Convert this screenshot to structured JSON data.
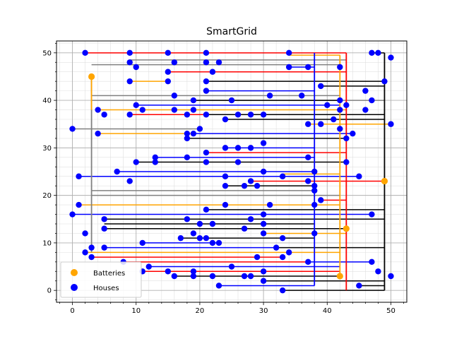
{
  "chart_data": {
    "type": "scatter",
    "title": "SmartGrid",
    "xlabel": "",
    "ylabel": "",
    "xlim": [
      -2.5,
      52.5
    ],
    "ylim": [
      -2.5,
      52.5
    ],
    "xticks": [
      0,
      10,
      20,
      30,
      40,
      50
    ],
    "yticks": [
      0,
      10,
      20,
      30,
      40,
      50
    ],
    "grid": "major and minor",
    "legend": {
      "position": "lower-left",
      "entries": [
        {
          "label": "Batteries",
          "color": "#ffa500"
        },
        {
          "label": "Houses",
          "color": "#0000ff"
        }
      ]
    },
    "colors": {
      "battery": "#ffa500",
      "house": "#0000ff",
      "cable_black": "#000000",
      "cable_blue": "#0000ff",
      "cable_red": "#ff0000",
      "cable_orange": "#ffa500",
      "cable_gray": "#808080"
    },
    "batteries": [
      [
        3,
        45
      ],
      [
        42,
        3
      ],
      [
        43,
        13
      ],
      [
        49,
        23
      ]
    ],
    "houses": [
      [
        2,
        50
      ],
      [
        9,
        50
      ],
      [
        15,
        50
      ],
      [
        21,
        50
      ],
      [
        34,
        50
      ],
      [
        47,
        50
      ],
      [
        48,
        50
      ],
      [
        50,
        49
      ],
      [
        9,
        48
      ],
      [
        21,
        48
      ],
      [
        23,
        48
      ],
      [
        10,
        47
      ],
      [
        16,
        48
      ],
      [
        15,
        46
      ],
      [
        22,
        46
      ],
      [
        34,
        47
      ],
      [
        37,
        47
      ],
      [
        42,
        47
      ],
      [
        9,
        44
      ],
      [
        15,
        44
      ],
      [
        21,
        44
      ],
      [
        39,
        43
      ],
      [
        49,
        44
      ],
      [
        21,
        42
      ],
      [
        46,
        42
      ],
      [
        16,
        41
      ],
      [
        31,
        41
      ],
      [
        36,
        41
      ],
      [
        19,
        40
      ],
      [
        25,
        40
      ],
      [
        42,
        40
      ],
      [
        47,
        40
      ],
      [
        10,
        39
      ],
      [
        40,
        39
      ],
      [
        43,
        39
      ],
      [
        4,
        38
      ],
      [
        11,
        38
      ],
      [
        16,
        38
      ],
      [
        19,
        38
      ],
      [
        42,
        38
      ],
      [
        46,
        38
      ],
      [
        5,
        37
      ],
      [
        9,
        37
      ],
      [
        18,
        37
      ],
      [
        21,
        37
      ],
      [
        26,
        37
      ],
      [
        28,
        37
      ],
      [
        30,
        37
      ],
      [
        24,
        36
      ],
      [
        41,
        36
      ],
      [
        37,
        35
      ],
      [
        39,
        35
      ],
      [
        50,
        35
      ],
      [
        0,
        34
      ],
      [
        20,
        34
      ],
      [
        42,
        34
      ],
      [
        4,
        33
      ],
      [
        18,
        33
      ],
      [
        19,
        33
      ],
      [
        44,
        33
      ],
      [
        18,
        32
      ],
      [
        43,
        32
      ],
      [
        30,
        31
      ],
      [
        24,
        30
      ],
      [
        26,
        30
      ],
      [
        28,
        30
      ],
      [
        21,
        29
      ],
      [
        13,
        28
      ],
      [
        18,
        28
      ],
      [
        37,
        28
      ],
      [
        13,
        27
      ],
      [
        21,
        27
      ],
      [
        26,
        27
      ],
      [
        10,
        27
      ],
      [
        43,
        27
      ],
      [
        7,
        25
      ],
      [
        30,
        25
      ],
      [
        38,
        25
      ],
      [
        1,
        24
      ],
      [
        24,
        24
      ],
      [
        33,
        24
      ],
      [
        45,
        24
      ],
      [
        9,
        23
      ],
      [
        28,
        23
      ],
      [
        37,
        23
      ],
      [
        24,
        22
      ],
      [
        27,
        22
      ],
      [
        29,
        22
      ],
      [
        38,
        22
      ],
      [
        38,
        21
      ],
      [
        39,
        19
      ],
      [
        1,
        18
      ],
      [
        24,
        18
      ],
      [
        31,
        18
      ],
      [
        38,
        18
      ],
      [
        21,
        17
      ],
      [
        0,
        16
      ],
      [
        30,
        16
      ],
      [
        47,
        16
      ],
      [
        5,
        15
      ],
      [
        18,
        15
      ],
      [
        22,
        14
      ],
      [
        20,
        14
      ],
      [
        28,
        15
      ],
      [
        30,
        14
      ],
      [
        5,
        13
      ],
      [
        27,
        13
      ],
      [
        2,
        12
      ],
      [
        19,
        12
      ],
      [
        30,
        12
      ],
      [
        38,
        12
      ],
      [
        17,
        11
      ],
      [
        20,
        11
      ],
      [
        21,
        11
      ],
      [
        33,
        11
      ],
      [
        11,
        10
      ],
      [
        22,
        10
      ],
      [
        23,
        10
      ],
      [
        3,
        9
      ],
      [
        5,
        9
      ],
      [
        32,
        9
      ],
      [
        2,
        8
      ],
      [
        34,
        8
      ],
      [
        3,
        7
      ],
      [
        29,
        7
      ],
      [
        33,
        7
      ],
      [
        8,
        6
      ],
      [
        37,
        6
      ],
      [
        47,
        6
      ],
      [
        12,
        5
      ],
      [
        25,
        5
      ],
      [
        11,
        4
      ],
      [
        15,
        4
      ],
      [
        19,
        4
      ],
      [
        30,
        4
      ],
      [
        48,
        4
      ],
      [
        16,
        3
      ],
      [
        19,
        3
      ],
      [
        22,
        3
      ],
      [
        27,
        3
      ],
      [
        28,
        3
      ],
      [
        50,
        3
      ],
      [
        30,
        2
      ],
      [
        23,
        1
      ],
      [
        45,
        1
      ],
      [
        33,
        0
      ]
    ],
    "cables": [
      {
        "c": "red",
        "h": [
          [
            2,
            50
          ],
          [
            22,
            50
          ]
        ]
      },
      {
        "c": "red",
        "h": [
          [
            22,
            50
          ],
          [
            43,
            50
          ]
        ]
      },
      {
        "c": "orange",
        "h": [
          [
            34,
            49.5
          ],
          [
            42,
            49.5
          ]
        ]
      },
      {
        "c": "black",
        "h": [
          [
            47,
            50
          ],
          [
            49,
            50
          ]
        ]
      },
      {
        "c": "gray",
        "h": [
          [
            9,
            48.5
          ],
          [
            43,
            48.5
          ]
        ]
      },
      {
        "c": "gray",
        "h": [
          [
            3,
            47.5
          ],
          [
            42,
            47.5
          ]
        ]
      },
      {
        "c": "blue",
        "h": [
          [
            34,
            47
          ],
          [
            38,
            47
          ]
        ]
      },
      {
        "c": "red",
        "h": [
          [
            15,
            46
          ],
          [
            43,
            46
          ]
        ]
      },
      {
        "c": "orange",
        "h": [
          [
            9,
            44
          ],
          [
            15,
            44
          ]
        ]
      },
      {
        "c": "black",
        "h": [
          [
            21,
            44
          ],
          [
            49,
            44
          ]
        ]
      },
      {
        "c": "black",
        "h": [
          [
            39,
            43
          ],
          [
            49,
            43
          ]
        ]
      },
      {
        "c": "blue",
        "h": [
          [
            21,
            42
          ],
          [
            38,
            42
          ]
        ]
      },
      {
        "c": "gray",
        "h": [
          [
            3,
            41
          ],
          [
            42,
            41
          ]
        ]
      },
      {
        "c": "gray",
        "h": [
          [
            3,
            40
          ],
          [
            49,
            40
          ]
        ]
      },
      {
        "c": "black",
        "h": [
          [
            19,
            40
          ],
          [
            42,
            40
          ]
        ]
      },
      {
        "c": "blue",
        "h": [
          [
            10,
            39
          ],
          [
            42,
            39
          ]
        ]
      },
      {
        "c": "orange",
        "h": [
          [
            4,
            38
          ],
          [
            43,
            38
          ]
        ]
      },
      {
        "c": "red",
        "h": [
          [
            9,
            37
          ],
          [
            21,
            37
          ]
        ]
      },
      {
        "c": "black",
        "h": [
          [
            21,
            37
          ],
          [
            49,
            37
          ]
        ]
      },
      {
        "c": "black",
        "h": [
          [
            24,
            36
          ],
          [
            49,
            36
          ]
        ]
      },
      {
        "c": "orange",
        "h": [
          [
            37,
            35
          ],
          [
            50,
            35
          ]
        ]
      },
      {
        "c": "gray",
        "h": [
          [
            0,
            34
          ],
          [
            20,
            34
          ]
        ]
      },
      {
        "c": "orange",
        "h": [
          [
            4,
            33
          ],
          [
            19,
            33
          ]
        ]
      },
      {
        "c": "blue",
        "h": [
          [
            19,
            33
          ],
          [
            44,
            33
          ]
        ]
      },
      {
        "c": "black",
        "h": [
          [
            18,
            32
          ],
          [
            43,
            32
          ]
        ]
      },
      {
        "c": "blue",
        "h": [
          [
            24,
            30
          ],
          [
            38,
            30
          ]
        ]
      },
      {
        "c": "red",
        "h": [
          [
            21,
            29
          ],
          [
            43,
            29
          ]
        ]
      },
      {
        "c": "blue",
        "h": [
          [
            13,
            28
          ],
          [
            38,
            28
          ]
        ]
      },
      {
        "c": "black",
        "h": [
          [
            10,
            27
          ],
          [
            43,
            27
          ]
        ]
      },
      {
        "c": "blue",
        "h": [
          [
            7,
            25
          ],
          [
            38,
            25
          ]
        ]
      },
      {
        "c": "orange",
        "h": [
          [
            33,
            24.5
          ],
          [
            42,
            24.5
          ]
        ]
      },
      {
        "c": "blue",
        "h": [
          [
            1,
            24
          ],
          [
            45,
            24
          ]
        ]
      },
      {
        "c": "red",
        "h": [
          [
            28,
            23
          ],
          [
            49,
            23
          ]
        ]
      },
      {
        "c": "black",
        "h": [
          [
            24,
            22
          ],
          [
            38,
            22
          ]
        ]
      },
      {
        "c": "gray",
        "h": [
          [
            3,
            21
          ],
          [
            38,
            21
          ]
        ]
      },
      {
        "c": "gray",
        "h": [
          [
            3,
            20
          ],
          [
            42,
            20
          ]
        ]
      },
      {
        "c": "red",
        "h": [
          [
            39,
            19
          ],
          [
            43,
            19
          ]
        ]
      },
      {
        "c": "orange",
        "h": [
          [
            1,
            18
          ],
          [
            42,
            18
          ]
        ]
      },
      {
        "c": "black",
        "h": [
          [
            21,
            17
          ],
          [
            49,
            17
          ]
        ]
      },
      {
        "c": "blue",
        "h": [
          [
            0,
            16
          ],
          [
            47,
            16
          ]
        ]
      },
      {
        "c": "black",
        "h": [
          [
            5,
            15
          ],
          [
            49,
            15
          ]
        ]
      },
      {
        "c": "black",
        "h": [
          [
            5,
            14
          ],
          [
            38,
            14
          ]
        ]
      },
      {
        "c": "black",
        "h": [
          [
            5,
            13
          ],
          [
            43,
            13
          ]
        ]
      },
      {
        "c": "orange",
        "h": [
          [
            30,
            12
          ],
          [
            43,
            12
          ]
        ]
      },
      {
        "c": "black",
        "h": [
          [
            17,
            11
          ],
          [
            38,
            11
          ]
        ]
      },
      {
        "c": "blue",
        "h": [
          [
            11,
            10
          ],
          [
            23,
            10
          ]
        ]
      },
      {
        "c": "blue",
        "h": [
          [
            5,
            9
          ],
          [
            32,
            9
          ]
        ]
      },
      {
        "c": "black",
        "h": [
          [
            32,
            9
          ],
          [
            49,
            9
          ]
        ]
      },
      {
        "c": "orange",
        "h": [
          [
            2,
            8
          ],
          [
            42,
            8
          ]
        ]
      },
      {
        "c": "red",
        "h": [
          [
            3,
            7
          ],
          [
            33,
            7
          ]
        ]
      },
      {
        "c": "red",
        "h": [
          [
            8,
            6
          ],
          [
            37,
            6
          ]
        ]
      },
      {
        "c": "blue",
        "h": [
          [
            37,
            6
          ],
          [
            47,
            6
          ]
        ]
      },
      {
        "c": "blue",
        "h": [
          [
            12,
            5
          ],
          [
            42,
            5
          ]
        ]
      },
      {
        "c": "red",
        "h": [
          [
            11,
            4
          ],
          [
            42,
            4
          ]
        ]
      },
      {
        "c": "black",
        "h": [
          [
            16,
            3
          ],
          [
            42,
            3
          ]
        ]
      },
      {
        "c": "black",
        "h": [
          [
            30,
            2
          ],
          [
            49,
            2
          ]
        ]
      },
      {
        "c": "blue",
        "h": [
          [
            23,
            1
          ],
          [
            38,
            1
          ]
        ]
      },
      {
        "c": "black",
        "h": [
          [
            33,
            0
          ],
          [
            49,
            0
          ]
        ]
      },
      {
        "c": "black",
        "h": [
          [
            45,
            1
          ],
          [
            49,
            1
          ]
        ]
      },
      {
        "c": "gray",
        "v": [
          [
            3,
            8
          ],
          [
            3,
            45
          ]
        ]
      },
      {
        "c": "blue",
        "v": [
          [
            38,
            1
          ],
          [
            38,
            50
          ]
        ]
      },
      {
        "c": "orange",
        "v": [
          [
            42,
            3
          ],
          [
            42,
            49.5
          ]
        ]
      },
      {
        "c": "red",
        "v": [
          [
            43,
            0
          ],
          [
            43,
            50
          ]
        ]
      },
      {
        "c": "black",
        "v": [
          [
            49,
            0
          ],
          [
            49,
            50
          ]
        ]
      },
      {
        "c": "orange",
        "v": [
          [
            3,
            38
          ],
          [
            3,
            45
          ]
        ]
      }
    ]
  }
}
